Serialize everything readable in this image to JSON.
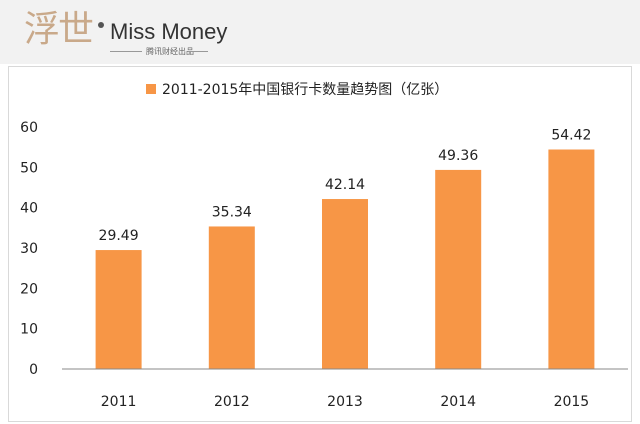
{
  "brand": {
    "logo_glyphs": "浮世",
    "name": "Miss Money",
    "sub": "腾讯财经出品"
  },
  "colors": {
    "bar": "#f79646",
    "axis": "#888888",
    "header_bg": "#f2f2f2",
    "logo_accent": "#c9a98a"
  },
  "chart_data": {
    "type": "bar",
    "title": "",
    "legend": "top-center",
    "categories": [
      "2011",
      "2012",
      "2013",
      "2014",
      "2015"
    ],
    "series": [
      {
        "name": "2011-2015年中国银行卡数量趋势图（亿张）",
        "values": [
          29.49,
          35.34,
          42.14,
          49.36,
          54.42
        ]
      }
    ],
    "data_labels": [
      "29.49",
      "35.34",
      "42.14",
      "49.36",
      "54.42"
    ],
    "y_ticks": [
      "0",
      "10",
      "20",
      "30",
      "40",
      "50",
      "60"
    ],
    "ylim": [
      0,
      60
    ],
    "grid": false,
    "xlabel": "",
    "ylabel": ""
  }
}
